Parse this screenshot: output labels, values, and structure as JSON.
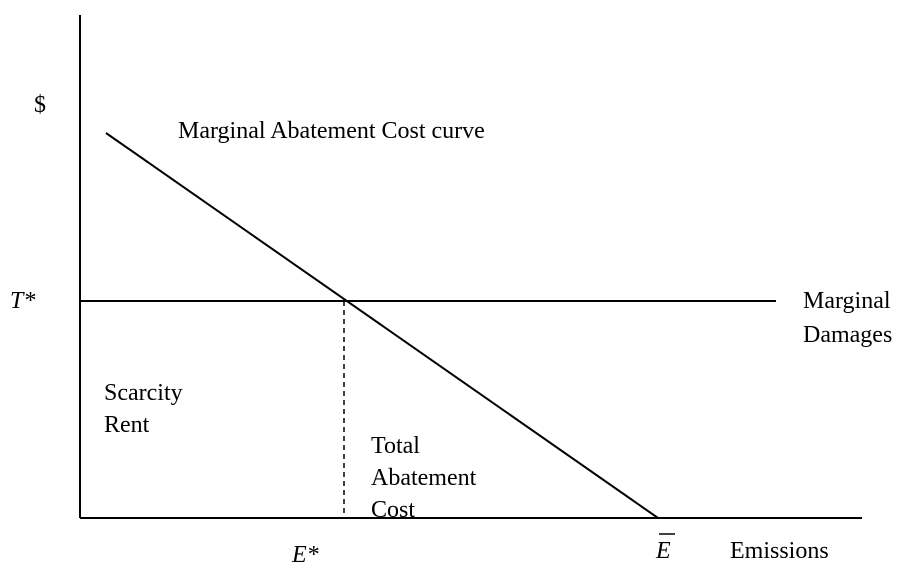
{
  "axes": {
    "y_label": "$",
    "x_label": "Emissions"
  },
  "curves": {
    "mac": "Marginal Abatement Cost curve",
    "md": [
      "Marginal",
      "Damages"
    ]
  },
  "points": {
    "t_star": "T*",
    "e_star": "E*",
    "e_bar": "E"
  },
  "areas": {
    "scarcity_rent": [
      "Scarcity",
      "Rent"
    ],
    "total_abatement_cost": [
      "Total",
      "Abatement",
      "Cost"
    ]
  }
}
